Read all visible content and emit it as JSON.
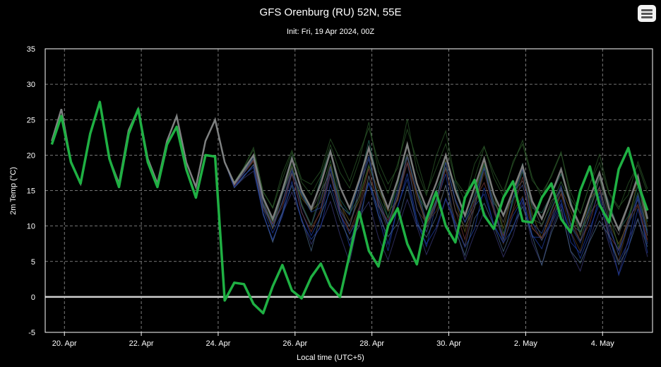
{
  "menu": {
    "icon": "hamburger-menu-icon"
  },
  "chart_data": {
    "type": "line",
    "title": "GFS Orenburg (RU) 52N, 55E",
    "subtitle": "Init: Fri, 19 Apr 2024, 00Z",
    "xlabel": "Local time (UTC+5)",
    "ylabel": "2m Temp (°C)",
    "ylim": [
      -5,
      35
    ],
    "yticks": [
      -5,
      0,
      5,
      10,
      15,
      20,
      25,
      30,
      35
    ],
    "xlim": [
      19.5,
      35.3
    ],
    "xticks": [
      {
        "value": 20,
        "label": "20. Apr"
      },
      {
        "value": 22,
        "label": "22. Apr"
      },
      {
        "value": 24,
        "label": "24. Apr"
      },
      {
        "value": 26,
        "label": "26. Apr"
      },
      {
        "value": 28,
        "label": "28. Apr"
      },
      {
        "value": 30,
        "label": "30. Apr"
      },
      {
        "value": 32,
        "label": "2. May"
      },
      {
        "value": 34,
        "label": "4. May"
      }
    ],
    "grid": true,
    "zero_line": true,
    "colors": {
      "highlight": "#1fb043",
      "mean": "#888888"
    },
    "series": [
      {
        "role": "highlight",
        "x": [
          19.67,
          19.92,
          20.17,
          20.42,
          20.67,
          20.92,
          21.17,
          21.42,
          21.67,
          21.92,
          22.17,
          22.42,
          22.67,
          22.92,
          23.17,
          23.42,
          23.67,
          23.92,
          24.17,
          24.42,
          24.67,
          24.92,
          25.17,
          25.42,
          25.67,
          25.92,
          26.17,
          26.42,
          26.67,
          26.92,
          27.17,
          27.42,
          27.67,
          27.92,
          28.17,
          28.42,
          28.67,
          28.92,
          29.17,
          29.42,
          29.67,
          29.92,
          30.17,
          30.42,
          30.67,
          30.92,
          31.17,
          31.42,
          31.67,
          31.92,
          32.17,
          32.42,
          32.67,
          32.92,
          33.17,
          33.42,
          33.67,
          33.92,
          34.17,
          34.42,
          34.67,
          34.92,
          35.17
        ],
        "y": [
          21.5,
          25.5,
          19,
          16,
          23,
          27.5,
          19.5,
          15.5,
          23,
          26.5,
          19,
          15.5,
          21.5,
          24,
          18,
          14,
          20,
          19.8,
          -0.5,
          2,
          1.8,
          -1,
          -2.3,
          1.5,
          4.5,
          0.9,
          -0.2,
          2.8,
          4.7,
          1.5,
          0,
          6,
          12,
          6.5,
          4.3,
          10,
          12.5,
          7.5,
          4.6,
          11,
          14.8,
          10,
          7.7,
          14,
          16.5,
          11.5,
          9.6,
          14,
          16.3,
          10.7,
          10.5,
          14,
          16,
          11,
          9.1,
          15,
          18.4,
          13,
          10.5,
          18,
          21,
          16,
          12.2
        ]
      },
      {
        "role": "mean",
        "x": [
          19.67,
          19.92,
          20.17,
          20.42,
          20.67,
          20.92,
          21.17,
          21.42,
          21.67,
          21.92,
          22.17,
          22.42,
          22.67,
          22.92,
          23.17,
          23.42,
          23.67,
          23.92,
          24.17,
          24.42,
          24.67,
          24.92,
          25.17,
          25.42,
          25.67,
          25.92,
          26.17,
          26.42,
          26.67,
          26.92,
          27.17,
          27.42,
          27.67,
          27.92,
          28.17,
          28.42,
          28.67,
          28.92,
          29.17,
          29.42,
          29.67,
          29.92,
          30.17,
          30.42,
          30.67,
          30.92,
          31.17,
          31.42,
          31.67,
          31.92,
          32.17,
          32.42,
          32.67,
          32.92,
          33.17,
          33.42,
          33.67,
          33.92,
          34.17,
          34.42,
          34.67,
          34.92,
          35.17
        ],
        "y": [
          22,
          26.5,
          19,
          16,
          23,
          27.5,
          19.5,
          16,
          23.5,
          26.5,
          19.5,
          16,
          22,
          25.5,
          19,
          15.5,
          22,
          25,
          19,
          16,
          18,
          20,
          14,
          11,
          15,
          19.5,
          15,
          12.5,
          16,
          20.5,
          15.5,
          12.5,
          16.5,
          21,
          16,
          12.5,
          16.5,
          21.5,
          16,
          12.5,
          16,
          20,
          15,
          11.5,
          15.5,
          19.5,
          14.5,
          11.5,
          15,
          18.5,
          13.5,
          11,
          14.5,
          18,
          13,
          10,
          14,
          17.5,
          12.5,
          9.5,
          13,
          17,
          11
        ]
      }
    ]
  }
}
